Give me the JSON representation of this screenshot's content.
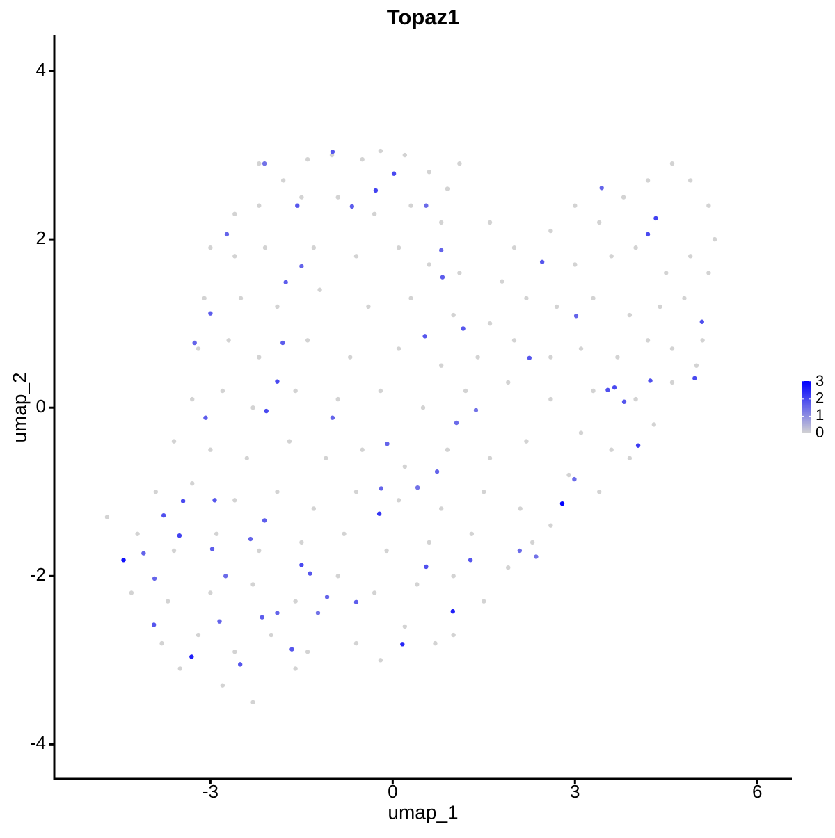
{
  "chart_data": {
    "type": "scatter",
    "title": "Topaz1",
    "x_label": "umap_1",
    "y_label": "umap_2",
    "xlim": [
      -5.57,
      6.57
    ],
    "ylim": [
      -4.41,
      4.43
    ],
    "xticks": [
      -3,
      0,
      3,
      6
    ],
    "yticks": [
      -4,
      -2,
      0,
      2,
      4
    ],
    "color_scale": {
      "low": "#d3d3d3",
      "high": "#0000ff",
      "limits": [
        0,
        3.05
      ],
      "ticks": [
        0,
        1,
        2,
        3
      ]
    },
    "x": [
      -2.2,
      -1.8,
      -1.4,
      -1.0,
      -0.5,
      -0.2,
      0.2,
      0.6,
      1.1,
      0.9,
      -2.6,
      -2.2,
      -1.5,
      -0.9,
      -0.3,
      0.3,
      0.8,
      1.6,
      -3.0,
      -2.6,
      -2.1,
      -1.3,
      -0.6,
      0.1,
      0.6,
      1.1,
      1.8,
      -3.1,
      -2.5,
      -1.9,
      -1.2,
      -0.4,
      0.3,
      1.0,
      1.6,
      2.2,
      -3.2,
      -2.7,
      -2.2,
      -1.4,
      -0.7,
      0.1,
      0.8,
      1.4,
      2.0,
      2.6,
      -3.3,
      -2.8,
      -2.3,
      -1.6,
      -0.9,
      -0.2,
      0.5,
      1.2,
      1.9,
      2.6,
      -3.6,
      -3.0,
      -2.4,
      -1.7,
      -1.1,
      -0.5,
      0.2,
      0.9,
      1.6,
      2.2,
      -3.9,
      -3.3,
      -2.6,
      -1.9,
      -1.3,
      -0.6,
      0.1,
      0.8,
      1.5,
      2.1,
      2.6,
      -4.7,
      -4.2,
      -3.6,
      -2.9,
      -2.2,
      -1.5,
      -0.8,
      -0.1,
      0.6,
      1.3,
      1.9,
      -4.3,
      -3.7,
      -3.0,
      -2.3,
      -1.6,
      -0.9,
      -0.3,
      0.4,
      1.0,
      1.5,
      -3.8,
      -3.2,
      -2.6,
      -2.0,
      -1.4,
      -0.6,
      0.2,
      0.7,
      1.0,
      -3.5,
      -2.8,
      -2.3,
      -1.6,
      -0.2,
      2.0,
      2.6,
      3.0,
      3.4,
      3.8,
      4.2,
      4.6,
      4.9,
      5.2,
      5.3,
      3.0,
      3.6,
      4.0,
      4.5,
      4.9,
      5.2,
      2.7,
      3.3,
      3.9,
      4.4,
      4.8,
      3.1,
      3.7,
      4.2,
      4.6,
      5.1,
      3.3,
      4.0,
      4.6,
      5.0,
      3.1,
      3.6,
      4.3,
      2.9,
      3.4,
      3.9,
      2.3,
      -4.43,
      2.79,
      -3.31,
      0.16,
      0.99,
      -0.22,
      4.04,
      0.02,
      -0.28,
      -0.99,
      4.2,
      4.33,
      5.09,
      4.97,
      3.65,
      -1.9,
      -2.08,
      -1.5,
      -1.36,
      -3.51,
      -3.45,
      -3.77,
      -3.93,
      -2.51,
      -1.66,
      0.55,
      1.28,
      2.09,
      2.99,
      0.53,
      1.16,
      3.02,
      2.25,
      0.82,
      0.8,
      -1.76,
      -1.5,
      -1.81,
      -3.26,
      -3.0,
      -2.73,
      -2.11,
      -1.57,
      -0.67,
      0.55,
      3.44,
      2.46,
      3.54,
      4.24,
      3.81,
      1.05,
      1.37,
      -0.09,
      -0.99,
      -0.19,
      0.73,
      0.41,
      -2.11,
      -2.34,
      -2.93,
      -3.08,
      -2.97,
      -2.75,
      -2.85,
      -2.15,
      -1.9,
      -1.08,
      -0.6,
      -1.23,
      -3.92,
      -4.1,
      2.36
    ],
    "y": [
      2.9,
      2.7,
      2.95,
      3.0,
      2.95,
      3.05,
      3.0,
      2.8,
      2.9,
      2.6,
      2.3,
      2.4,
      2.5,
      2.5,
      2.3,
      2.4,
      2.2,
      2.2,
      1.9,
      1.8,
      1.9,
      1.9,
      1.8,
      1.9,
      1.7,
      1.6,
      1.5,
      1.3,
      1.3,
      1.2,
      1.4,
      1.2,
      1.3,
      1.1,
      1.0,
      1.3,
      0.7,
      0.8,
      0.6,
      0.8,
      0.6,
      0.7,
      0.5,
      0.6,
      0.8,
      0.6,
      0.1,
      0.2,
      0.0,
      0.2,
      0.1,
      0.2,
      0.0,
      0.2,
      0.3,
      0.1,
      -0.4,
      -0.5,
      -0.6,
      -0.4,
      -0.6,
      -0.5,
      -0.7,
      -0.5,
      -0.6,
      -0.4,
      -1.0,
      -0.9,
      -1.1,
      -1.0,
      -1.2,
      -1.0,
      -1.1,
      -1.2,
      -1.0,
      -1.2,
      -1.4,
      -1.3,
      -1.5,
      -1.7,
      -1.5,
      -1.7,
      -1.6,
      -1.5,
      -1.7,
      -1.6,
      -1.5,
      -1.9,
      -2.2,
      -2.3,
      -2.2,
      -2.1,
      -2.3,
      -2.0,
      -2.2,
      -2.1,
      -2.0,
      -2.3,
      -2.8,
      -2.7,
      -2.9,
      -2.7,
      -2.9,
      -2.8,
      -2.6,
      -2.8,
      -2.7,
      -3.1,
      -3.3,
      -3.5,
      -3.1,
      -3.0,
      1.9,
      2.1,
      2.4,
      2.2,
      2.5,
      2.7,
      2.9,
      2.7,
      2.4,
      2.0,
      1.7,
      1.8,
      1.9,
      1.6,
      1.8,
      1.6,
      1.2,
      1.3,
      1.1,
      1.2,
      1.3,
      0.7,
      0.6,
      0.8,
      0.7,
      0.8,
      0.2,
      0.1,
      0.3,
      0.5,
      -0.3,
      -0.5,
      -0.2,
      -0.8,
      -1.0,
      -0.6,
      -1.6,
      -1.81,
      -1.14,
      -2.96,
      -2.81,
      -2.42,
      -1.26,
      -0.45,
      2.78,
      2.58,
      3.04,
      2.06,
      2.25,
      1.02,
      0.35,
      0.24,
      0.31,
      -0.04,
      -1.87,
      -1.97,
      -1.52,
      -1.11,
      -1.28,
      -2.58,
      -3.05,
      -2.87,
      -1.89,
      -1.81,
      -1.7,
      -0.85,
      0.85,
      0.94,
      1.09,
      0.59,
      1.55,
      1.87,
      1.49,
      1.68,
      0.77,
      0.77,
      1.12,
      2.06,
      2.9,
      2.4,
      2.39,
      2.4,
      2.61,
      1.73,
      0.21,
      0.32,
      0.07,
      -0.18,
      -0.03,
      -0.43,
      -0.12,
      -0.96,
      -0.76,
      -0.95,
      -1.34,
      -1.56,
      -1.1,
      -0.12,
      -1.68,
      -2.0,
      -2.54,
      -2.49,
      -2.44,
      -2.25,
      -2.31,
      -2.44,
      -2.03,
      -1.73,
      -1.77
    ],
    "values": [
      0,
      0,
      0,
      0,
      0,
      0,
      0,
      0,
      0,
      0,
      0,
      0,
      0,
      0,
      0,
      0,
      0,
      0,
      0,
      0,
      0,
      0,
      0,
      0,
      0,
      0,
      0,
      0,
      0,
      0,
      0,
      0,
      0,
      0,
      0,
      0,
      0,
      0,
      0,
      0,
      0,
      0,
      0,
      0,
      0,
      0,
      0,
      0,
      0,
      0,
      0,
      0,
      0,
      0,
      0,
      0,
      0,
      0,
      0,
      0,
      0,
      0,
      0,
      0,
      0,
      0,
      0,
      0,
      0,
      0,
      0,
      0,
      0,
      0,
      0,
      0,
      0,
      0,
      0,
      0,
      0,
      0,
      0,
      0,
      0,
      0,
      0,
      0,
      0,
      0,
      0,
      0,
      0,
      0,
      0,
      0,
      0,
      0,
      0,
      0,
      0,
      0,
      0,
      0,
      0,
      0,
      0,
      0,
      0,
      0,
      0,
      0,
      0,
      0,
      0,
      0,
      0,
      0,
      0,
      0,
      0,
      0,
      0,
      0,
      0,
      0,
      0,
      0,
      0,
      0,
      0,
      0,
      0,
      0,
      0,
      0,
      0,
      0,
      0,
      0,
      0,
      0,
      0,
      0,
      0,
      0,
      0,
      0,
      0,
      2.8,
      3.0,
      2.6,
      2.5,
      2.6,
      2.3,
      2.2,
      2.0,
      2.1,
      1.8,
      2.0,
      2.1,
      1.9,
      2.0,
      2.0,
      2.0,
      2.0,
      2.0,
      1.8,
      2.1,
      2.0,
      1.9,
      1.8,
      1.8,
      1.8,
      1.9,
      1.8,
      1.5,
      1.5,
      1.8,
      1.8,
      1.6,
      1.8,
      1.7,
      1.6,
      1.7,
      1.6,
      1.7,
      1.6,
      1.7,
      1.6,
      1.4,
      1.8,
      1.7,
      1.5,
      1.6,
      1.8,
      1.9,
      1.9,
      1.8,
      1.5,
      1.4,
      1.6,
      1.6,
      1.6,
      1.6,
      1.4,
      1.7,
      1.6,
      1.8,
      1.7,
      1.7,
      1.5,
      1.6,
      1.7,
      1.6,
      1.6,
      1.7,
      1.4,
      1.6,
      1.6,
      1.4
    ]
  }
}
